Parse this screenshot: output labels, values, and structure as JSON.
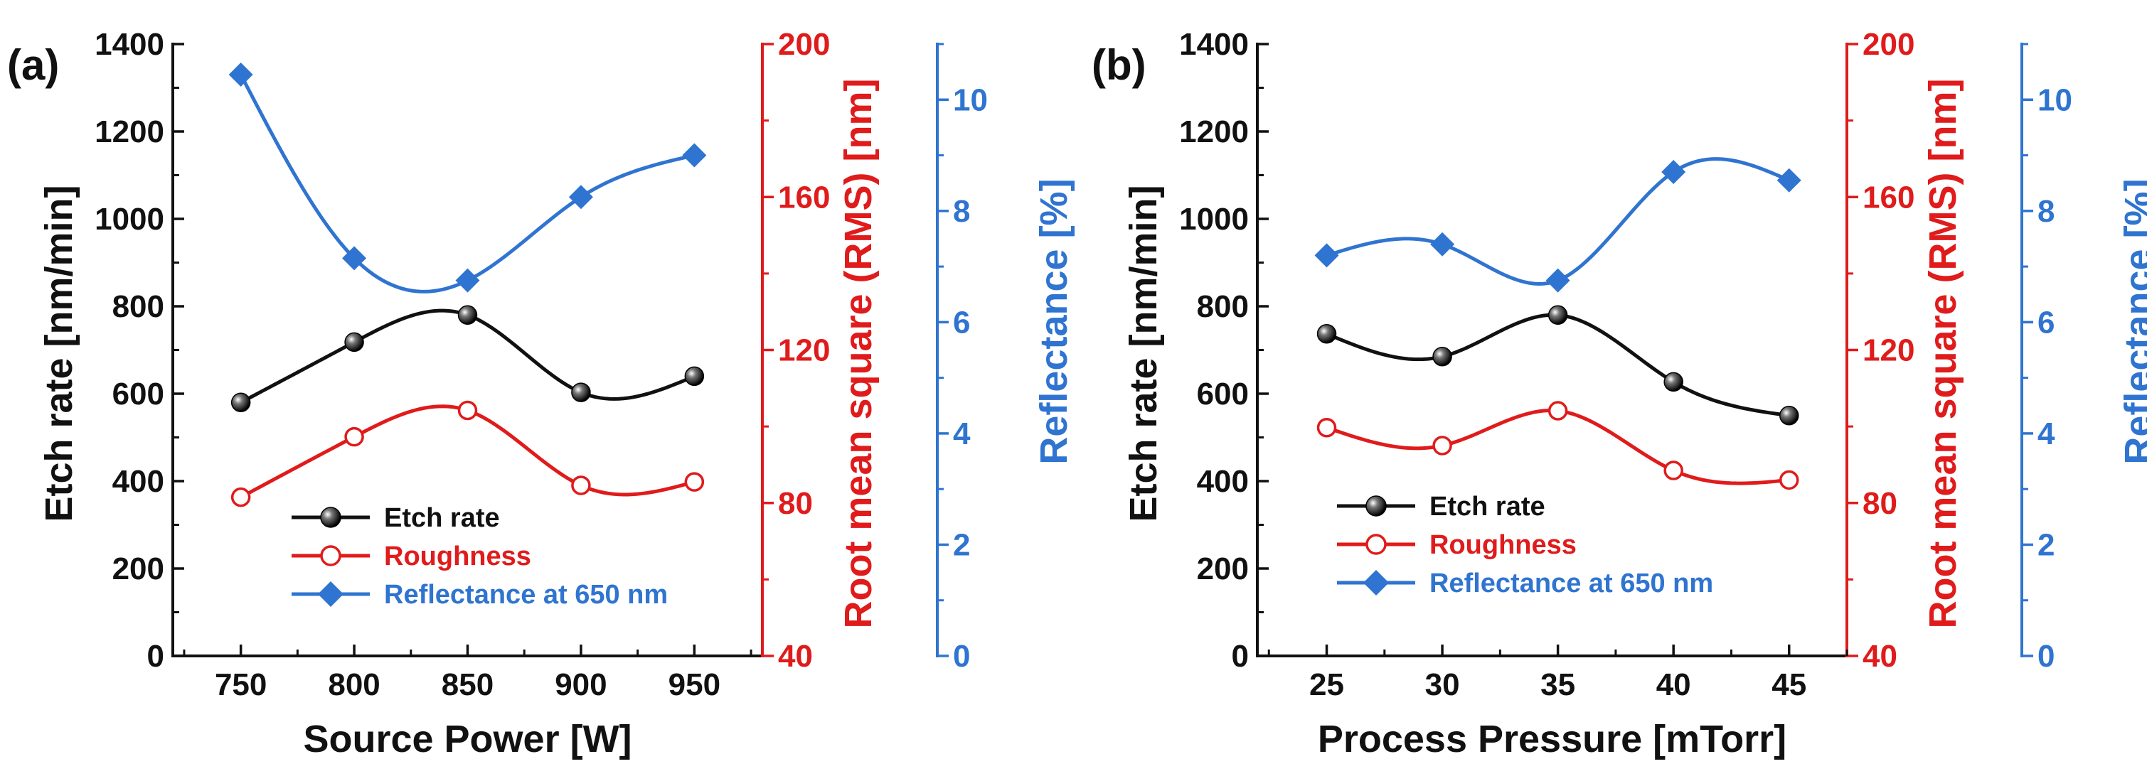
{
  "colors": {
    "etch": "#111111",
    "roughness": "#e01b1b",
    "reflectance": "#2f74d0",
    "axis": "#111111"
  },
  "icons": {
    "etch_marker": "black-sphere-marker-icon",
    "roughness_marker": "red-open-circle-marker-icon",
    "reflectance_marker": "blue-diamond-marker-icon"
  },
  "chart_data": [
    {
      "type": "scatter",
      "panel_label": "(a)",
      "xlabel": "Source Power [W]",
      "x": [
        750,
        800,
        850,
        900,
        950
      ],
      "xticks": [
        750,
        800,
        850,
        900,
        950
      ],
      "xlim": [
        720,
        980
      ],
      "y_left": {
        "label": "Etch rate [nm/min]",
        "lim": [
          0,
          1400
        ],
        "ticks": [
          0,
          200,
          400,
          600,
          800,
          1000,
          1200,
          1400
        ]
      },
      "y_mid": {
        "label": "Root mean square (RMS) [nm]",
        "lim": [
          40,
          200
        ],
        "ticks": [
          40,
          80,
          120,
          160,
          200
        ]
      },
      "y_right": {
        "label": "Reflectance [%]",
        "lim": [
          0,
          11
        ],
        "ticks": [
          0,
          2,
          4,
          6,
          8,
          10
        ]
      },
      "series": [
        {
          "name": "Etch rate",
          "axis": "left",
          "marker": "filled-circle",
          "values": [
            580,
            718,
            780,
            603,
            640
          ]
        },
        {
          "name": "Roughness",
          "axis": "mid",
          "marker": "open-circle",
          "values": [
            81.5,
            97.3,
            104.2,
            84.6,
            85.5
          ]
        },
        {
          "name": "Reflectance at 650 nm",
          "axis": "right",
          "marker": "diamond",
          "values": [
            10.45,
            7.15,
            6.75,
            8.25,
            9.0
          ]
        }
      ],
      "legend": [
        "Etch rate",
        "Roughness",
        "Reflectance at 650 nm"
      ],
      "legend_position": "lower-center"
    },
    {
      "type": "scatter",
      "panel_label": "(b)",
      "xlabel": "Process Pressure [mTorr]",
      "x": [
        25,
        30,
        35,
        40,
        45
      ],
      "xticks": [
        25,
        30,
        35,
        40,
        45
      ],
      "xlim": [
        22,
        47.5
      ],
      "y_left": {
        "label": "Etch rate [nm/min]",
        "lim": [
          0,
          1400
        ],
        "ticks": [
          0,
          200,
          400,
          600,
          800,
          1000,
          1200,
          1400
        ]
      },
      "y_mid": {
        "label": "Root mean square (RMS) [nm]",
        "lim": [
          40,
          200
        ],
        "ticks": [
          40,
          80,
          120,
          160,
          200
        ]
      },
      "y_right": {
        "label": "Reflectance [%]",
        "lim": [
          0,
          11
        ],
        "ticks": [
          0,
          2,
          4,
          6,
          8,
          10
        ]
      },
      "series": [
        {
          "name": "Etch rate",
          "axis": "left",
          "marker": "filled-circle",
          "values": [
            737,
            685,
            780,
            627,
            550
          ]
        },
        {
          "name": "Roughness",
          "axis": "mid",
          "marker": "open-circle",
          "values": [
            99.7,
            95.0,
            104.1,
            88.5,
            86.0
          ]
        },
        {
          "name": "Reflectance at 650 nm",
          "axis": "right",
          "marker": "diamond",
          "values": [
            7.2,
            7.4,
            6.75,
            8.7,
            8.55
          ]
        }
      ],
      "legend": [
        "Etch rate",
        "Roughness",
        "Reflectance at 650 nm"
      ],
      "legend_position": "lower-left"
    }
  ]
}
